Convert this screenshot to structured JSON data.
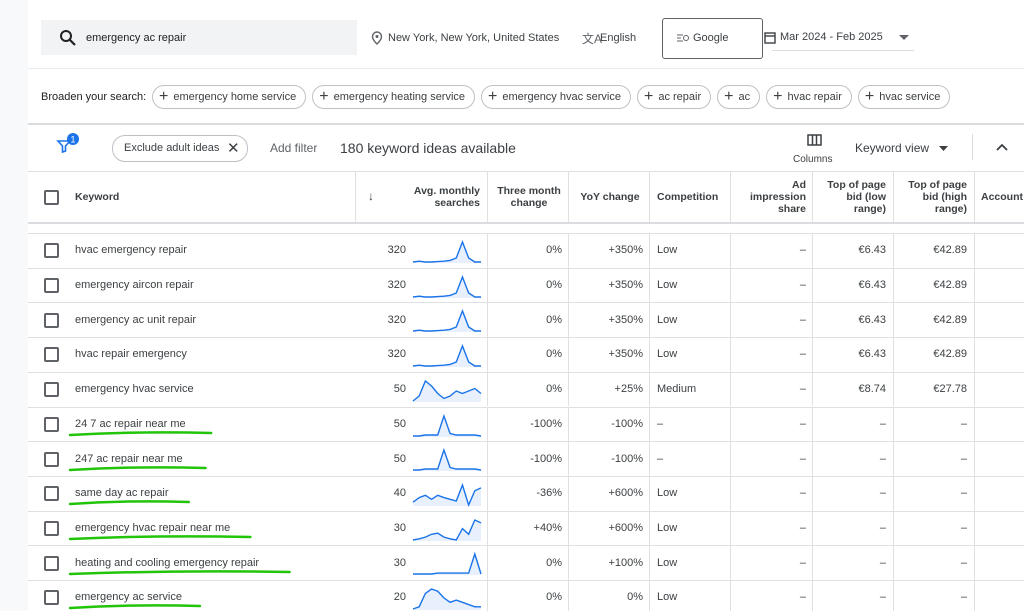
{
  "header": {
    "search_query": "emergency ac repair",
    "location": "New York, New York, United States",
    "language": "English",
    "network": "Google",
    "date_range": "Mar 2024 - Feb 2025"
  },
  "broaden": {
    "label": "Broaden your search:",
    "chips": [
      "emergency home service",
      "emergency heating service",
      "emergency hvac service",
      "ac repair",
      "ac",
      "hvac repair",
      "hvac service"
    ]
  },
  "toolbar": {
    "filter_count": "1",
    "filter_chip": "Exclude adult ideas",
    "add_filter": "Add filter",
    "ideas_count": "180 keyword ideas available",
    "columns": "Columns",
    "view": "Keyword view"
  },
  "table": {
    "columns": [
      "Keyword",
      "Avg. monthly searches",
      "Three month change",
      "YoY change",
      "Competition",
      "Ad impression share",
      "Top of page bid (low range)",
      "Top of page bid (high range)",
      "Account S"
    ],
    "rows": [
      {
        "keyword": "hvac emergency repair",
        "searches": "320",
        "trend": [
          10,
          12,
          10,
          10,
          11,
          12,
          14,
          20,
          60,
          20,
          10,
          10
        ],
        "three_month": "0%",
        "yoy": "+350%",
        "competition": "Low",
        "ad_share": "–",
        "bid_low": "€6.43",
        "bid_high": "€42.89",
        "highlighted": false
      },
      {
        "keyword": "emergency aircon repair",
        "searches": "320",
        "trend": [
          10,
          12,
          10,
          10,
          11,
          12,
          14,
          20,
          60,
          20,
          10,
          10
        ],
        "three_month": "0%",
        "yoy": "+350%",
        "competition": "Low",
        "ad_share": "–",
        "bid_low": "€6.43",
        "bid_high": "€42.89",
        "highlighted": false
      },
      {
        "keyword": "emergency ac unit repair",
        "searches": "320",
        "trend": [
          10,
          12,
          10,
          10,
          11,
          12,
          14,
          20,
          60,
          20,
          10,
          10
        ],
        "three_month": "0%",
        "yoy": "+350%",
        "competition": "Low",
        "ad_share": "–",
        "bid_low": "€6.43",
        "bid_high": "€42.89",
        "highlighted": false
      },
      {
        "keyword": "hvac repair emergency",
        "searches": "320",
        "trend": [
          10,
          12,
          10,
          10,
          11,
          12,
          14,
          20,
          60,
          20,
          10,
          10
        ],
        "three_month": "0%",
        "yoy": "+350%",
        "competition": "Low",
        "ad_share": "–",
        "bid_low": "€6.43",
        "bid_high": "€42.89",
        "highlighted": false
      },
      {
        "keyword": "emergency hvac service",
        "searches": "50",
        "trend": [
          10,
          20,
          50,
          40,
          25,
          15,
          20,
          30,
          25,
          30,
          35,
          25
        ],
        "three_month": "0%",
        "yoy": "+25%",
        "competition": "Medium",
        "ad_share": "–",
        "bid_low": "€8.74",
        "bid_high": "€27.78",
        "highlighted": false
      },
      {
        "keyword": "24 7 ac repair near me",
        "searches": "50",
        "trend": [
          10,
          10,
          12,
          12,
          12,
          50,
          15,
          12,
          12,
          12,
          12,
          10
        ],
        "three_month": "-100%",
        "yoy": "-100%",
        "competition": "–",
        "ad_share": "–",
        "bid_low": "–",
        "bid_high": "–",
        "highlighted": true
      },
      {
        "keyword": "247 ac repair near me",
        "searches": "50",
        "trend": [
          10,
          10,
          12,
          12,
          12,
          50,
          15,
          12,
          12,
          12,
          12,
          10
        ],
        "three_month": "-100%",
        "yoy": "-100%",
        "competition": "–",
        "ad_share": "–",
        "bid_low": "–",
        "bid_high": "–",
        "highlighted": true
      },
      {
        "keyword": "same day ac repair",
        "searches": "40",
        "trend": [
          10,
          18,
          22,
          15,
          22,
          18,
          15,
          12,
          40,
          5,
          30,
          35
        ],
        "three_month": "-36%",
        "yoy": "+600%",
        "competition": "Low",
        "ad_share": "–",
        "bid_low": "–",
        "bid_high": "–",
        "highlighted": true
      },
      {
        "keyword": "emergency hvac repair near me",
        "searches": "30",
        "trend": [
          10,
          12,
          15,
          20,
          22,
          15,
          12,
          10,
          30,
          20,
          45,
          40
        ],
        "three_month": "+40%",
        "yoy": "+600%",
        "competition": "Low",
        "ad_share": "–",
        "bid_low": "–",
        "bid_high": "–",
        "highlighted": true
      },
      {
        "keyword": "heating and cooling emergency repair",
        "searches": "30",
        "trend": [
          10,
          10,
          10,
          10,
          12,
          12,
          12,
          12,
          12,
          12,
          55,
          10
        ],
        "three_month": "0%",
        "yoy": "+100%",
        "competition": "Low",
        "ad_share": "–",
        "bid_low": "–",
        "bid_high": "–",
        "highlighted": true
      },
      {
        "keyword": "emergency ac service",
        "searches": "20",
        "trend": [
          5,
          10,
          40,
          50,
          45,
          30,
          20,
          25,
          20,
          15,
          10,
          10
        ],
        "three_month": "0%",
        "yoy": "0%",
        "competition": "Low",
        "ad_share": "–",
        "bid_low": "–",
        "bid_high": "–",
        "highlighted": true
      }
    ]
  }
}
